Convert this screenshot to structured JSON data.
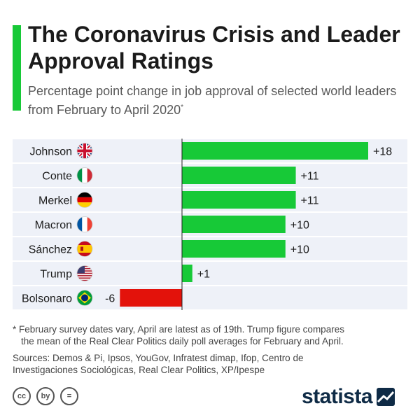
{
  "header": {
    "title": "The Coronavirus Crisis and Leader Approval Ratings",
    "subtitle": "Percentage point change in job approval of selected world leaders from February to April 2020",
    "subtitle_mark": "*"
  },
  "colors": {
    "accent": "#17c937",
    "positive": "#17c937",
    "negative": "#e3120b",
    "row_band": "#eef1f8",
    "brand": "#0f2b46"
  },
  "chart_data": {
    "type": "bar",
    "orientation": "horizontal",
    "categories": [
      "Johnson",
      "Conte",
      "Merkel",
      "Macron",
      "Sánchez",
      "Trump",
      "Bolsonaro"
    ],
    "flags": [
      "uk-flag-icon",
      "italy-flag-icon",
      "germany-flag-icon",
      "france-flag-icon",
      "spain-flag-icon",
      "usa-flag-icon",
      "brazil-flag-icon"
    ],
    "values": [
      18,
      11,
      11,
      10,
      10,
      1,
      -6
    ],
    "labels": [
      "+18",
      "+11",
      "+11",
      "+10",
      "+10",
      "+1",
      "-6"
    ],
    "xlim": [
      -6,
      18
    ]
  },
  "footnote": {
    "line1": "* February survey dates vary, April are latest as of 19th. Trump figure compares",
    "line2": "the mean of the Real Clear Politics daily poll averages for February and April."
  },
  "sources": {
    "line1": "Sources: Demos & Pi, Ipsos, YouGov, Infratest dimap, Ifop, Centro de",
    "line2": "Investigaciones Sociológicas, Real Clear Politics, XP/Ipespe"
  },
  "license": {
    "cc": "cc",
    "by": "by",
    "eq": "="
  },
  "brand": {
    "name": "statista"
  }
}
